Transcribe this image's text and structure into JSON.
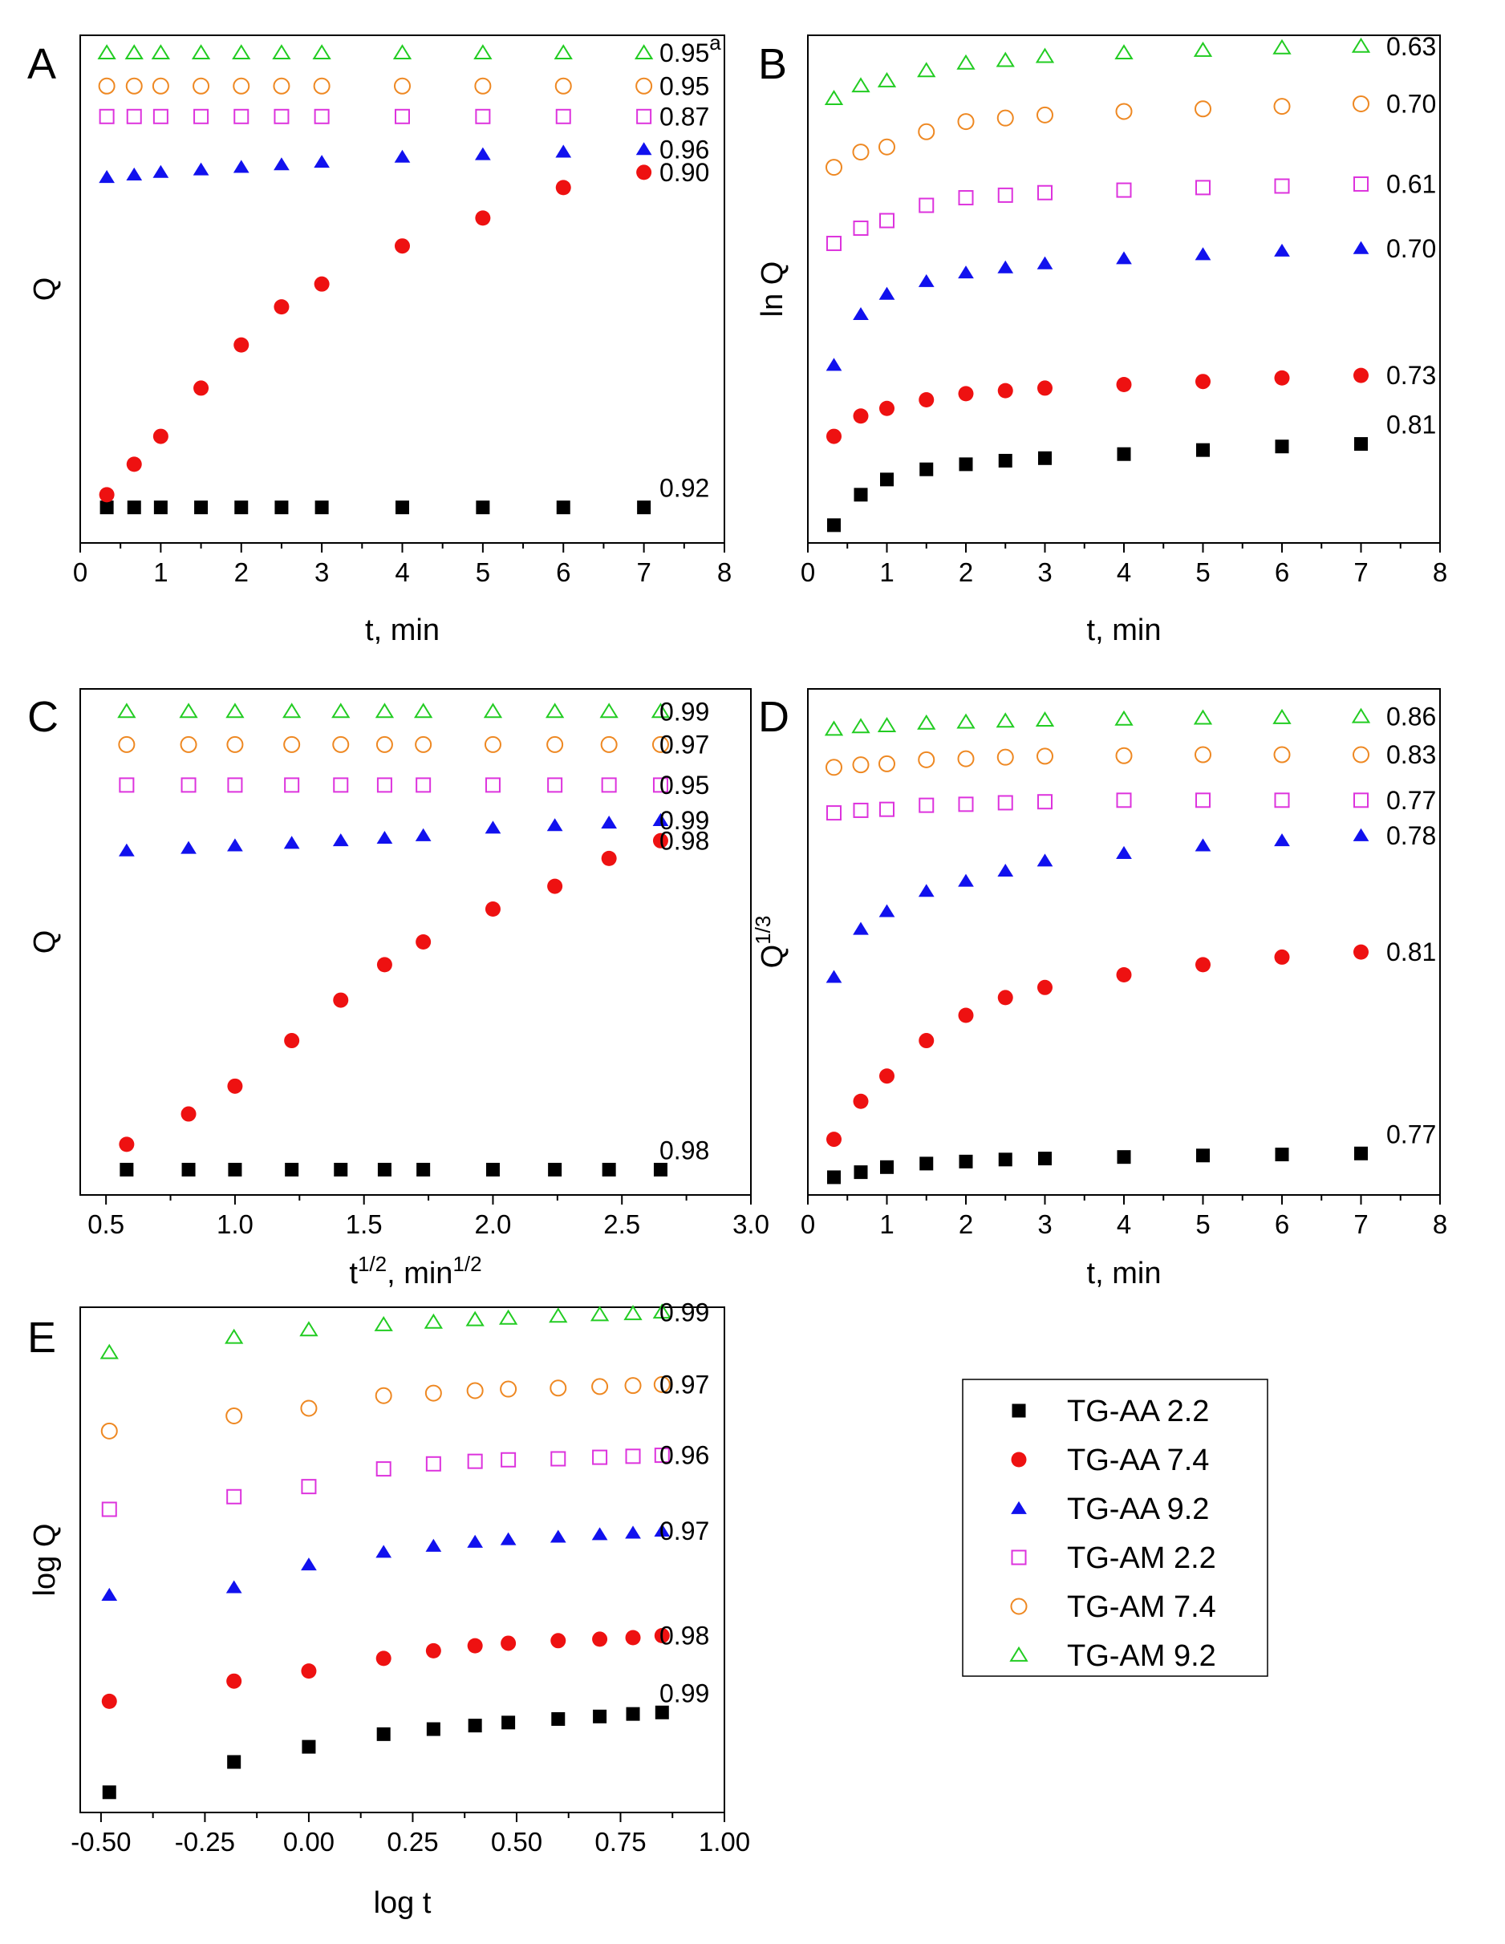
{
  "legend": {
    "entries": [
      {
        "name": "TG-AA 2.2",
        "marker": "square",
        "color": "#000000",
        "filled": true
      },
      {
        "name": "TG-AA 7.4",
        "marker": "circle",
        "color": "#ee1111",
        "filled": true
      },
      {
        "name": "TG-AA 9.2",
        "marker": "triangle",
        "color": "#1111ee",
        "filled": true
      },
      {
        "name": "TG-AM 2.2",
        "marker": "square",
        "color": "#dd33dd",
        "filled": false
      },
      {
        "name": "TG-AM 7.4",
        "marker": "circle",
        "color": "#ee8822",
        "filled": false
      },
      {
        "name": "TG-AM 9.2",
        "marker": "triangle",
        "color": "#22cc22",
        "filled": false
      }
    ]
  },
  "chart_data": [
    {
      "panel": "A",
      "type": "scatter",
      "xlabel": "t, min",
      "ylabel": "Q",
      "xlim": [
        0,
        8
      ],
      "xticks": [
        "0",
        "1",
        "2",
        "3",
        "4",
        "5",
        "6",
        "7",
        "8"
      ],
      "ylim": [
        0,
        1
      ],
      "y_tick_labels_shown": false,
      "x": [
        0.33,
        0.67,
        1,
        1.5,
        2,
        2.5,
        3,
        4,
        5,
        6,
        7
      ],
      "series": [
        {
          "name": "TG-AA 2.2",
          "values": [
            0.07,
            0.07,
            0.07,
            0.07,
            0.07,
            0.07,
            0.07,
            0.07,
            0.07,
            0.07,
            0.07
          ],
          "r2": "0.92"
        },
        {
          "name": "TG-AA 7.4",
          "values": [
            0.095,
            0.155,
            0.21,
            0.305,
            0.39,
            0.465,
            0.51,
            0.585,
            0.64,
            0.7,
            0.73
          ],
          "r2": "0.90"
        },
        {
          "name": "TG-AA 9.2",
          "values": [
            0.72,
            0.725,
            0.73,
            0.735,
            0.74,
            0.745,
            0.75,
            0.76,
            0.765,
            0.77,
            0.775
          ],
          "r2": "0.96"
        },
        {
          "name": "TG-AM 2.2",
          "values": [
            0.84,
            0.84,
            0.84,
            0.84,
            0.84,
            0.84,
            0.84,
            0.84,
            0.84,
            0.84,
            0.84
          ],
          "r2": "0.87"
        },
        {
          "name": "TG-AM 7.4",
          "values": [
            0.9,
            0.9,
            0.9,
            0.9,
            0.9,
            0.9,
            0.9,
            0.9,
            0.9,
            0.9,
            0.9
          ],
          "r2": "0.95"
        },
        {
          "name": "TG-AM 9.2",
          "values": [
            0.965,
            0.965,
            0.965,
            0.965,
            0.965,
            0.965,
            0.965,
            0.965,
            0.965,
            0.965,
            0.965
          ],
          "r2": "0.95",
          "note": "a"
        }
      ]
    },
    {
      "panel": "B",
      "type": "scatter",
      "xlabel": "t, min",
      "ylabel": "ln Q",
      "xlim": [
        0,
        8
      ],
      "xticks": [
        "0",
        "1",
        "2",
        "3",
        "4",
        "5",
        "6",
        "7",
        "8"
      ],
      "ylim": [
        0,
        1
      ],
      "y_tick_labels_shown": false,
      "x": [
        0.33,
        0.67,
        1,
        1.5,
        2,
        2.5,
        3,
        4,
        5,
        6,
        7
      ],
      "series": [
        {
          "name": "TG-AA 2.2",
          "values": [
            0.035,
            0.095,
            0.125,
            0.145,
            0.155,
            0.162,
            0.167,
            0.175,
            0.183,
            0.19,
            0.195
          ],
          "r2": "0.81"
        },
        {
          "name": "TG-AA 7.4",
          "values": [
            0.21,
            0.25,
            0.265,
            0.282,
            0.294,
            0.3,
            0.305,
            0.312,
            0.318,
            0.325,
            0.33
          ],
          "r2": "0.73"
        },
        {
          "name": "TG-AA 9.2",
          "values": [
            0.35,
            0.45,
            0.49,
            0.515,
            0.532,
            0.542,
            0.55,
            0.56,
            0.568,
            0.575,
            0.58
          ],
          "r2": "0.70"
        },
        {
          "name": "TG-AM 2.2",
          "values": [
            0.59,
            0.62,
            0.635,
            0.665,
            0.68,
            0.685,
            0.69,
            0.695,
            0.7,
            0.703,
            0.707
          ],
          "r2": "0.61"
        },
        {
          "name": "TG-AM 7.4",
          "values": [
            0.74,
            0.77,
            0.78,
            0.81,
            0.83,
            0.837,
            0.843,
            0.85,
            0.855,
            0.86,
            0.865
          ],
          "r2": "0.70"
        },
        {
          "name": "TG-AM 9.2",
          "values": [
            0.875,
            0.9,
            0.91,
            0.93,
            0.945,
            0.95,
            0.958,
            0.965,
            0.97,
            0.975,
            0.978
          ],
          "r2": "0.63"
        }
      ]
    },
    {
      "panel": "C",
      "type": "scatter",
      "xlabel": "t^1/2, min^1/2",
      "ylabel": "Q",
      "xlim": [
        0.4,
        3.0
      ],
      "xticks": [
        "0.5",
        "1.0",
        "1.5",
        "2.0",
        "2.5",
        "3.0"
      ],
      "ylim": [
        0,
        1
      ],
      "y_tick_labels_shown": false,
      "x": [
        0.58,
        0.82,
        1.0,
        1.22,
        1.41,
        1.58,
        1.73,
        2.0,
        2.24,
        2.45,
        2.65
      ],
      "series": [
        {
          "name": "TG-AA 2.2",
          "values": [
            0.05,
            0.05,
            0.05,
            0.05,
            0.05,
            0.05,
            0.05,
            0.05,
            0.05,
            0.05,
            0.05
          ],
          "r2": "0.98"
        },
        {
          "name": "TG-AA 7.4",
          "values": [
            0.1,
            0.16,
            0.215,
            0.305,
            0.385,
            0.455,
            0.5,
            0.565,
            0.61,
            0.665,
            0.7
          ],
          "r2": "0.98"
        },
        {
          "name": "TG-AA 9.2",
          "values": [
            0.68,
            0.685,
            0.69,
            0.695,
            0.7,
            0.705,
            0.71,
            0.725,
            0.73,
            0.735,
            0.74
          ],
          "r2": "0.99"
        },
        {
          "name": "TG-AM 2.2",
          "values": [
            0.81,
            0.81,
            0.81,
            0.81,
            0.81,
            0.81,
            0.81,
            0.81,
            0.81,
            0.81,
            0.81
          ],
          "r2": "0.95"
        },
        {
          "name": "TG-AM 7.4",
          "values": [
            0.89,
            0.89,
            0.89,
            0.89,
            0.89,
            0.89,
            0.89,
            0.89,
            0.89,
            0.89,
            0.89
          ],
          "r2": "0.97"
        },
        {
          "name": "TG-AM 9.2",
          "values": [
            0.955,
            0.955,
            0.955,
            0.955,
            0.955,
            0.955,
            0.955,
            0.955,
            0.955,
            0.955,
            0.955
          ],
          "r2": "0.99"
        }
      ]
    },
    {
      "panel": "D",
      "type": "scatter",
      "xlabel": "t, min",
      "ylabel": "Q^1/3",
      "xlim": [
        0,
        8
      ],
      "xticks": [
        "0",
        "1",
        "2",
        "3",
        "4",
        "5",
        "6",
        "7",
        "8"
      ],
      "ylim": [
        0,
        1
      ],
      "y_tick_labels_shown": false,
      "x": [
        0.33,
        0.67,
        1,
        1.5,
        2,
        2.5,
        3,
        4,
        5,
        6,
        7
      ],
      "series": [
        {
          "name": "TG-AA 2.2",
          "values": [
            0.035,
            0.045,
            0.055,
            0.062,
            0.066,
            0.07,
            0.072,
            0.075,
            0.078,
            0.08,
            0.082
          ],
          "r2": "0.77"
        },
        {
          "name": "TG-AA 7.4",
          "values": [
            0.11,
            0.185,
            0.235,
            0.305,
            0.355,
            0.39,
            0.41,
            0.435,
            0.455,
            0.47,
            0.48
          ],
          "r2": "0.81"
        },
        {
          "name": "TG-AA 9.2",
          "values": [
            0.43,
            0.525,
            0.56,
            0.6,
            0.62,
            0.64,
            0.66,
            0.675,
            0.69,
            0.7,
            0.71
          ],
          "r2": "0.78"
        },
        {
          "name": "TG-AM 2.2",
          "values": [
            0.755,
            0.76,
            0.762,
            0.77,
            0.772,
            0.775,
            0.777,
            0.78,
            0.78,
            0.78,
            0.78
          ],
          "r2": "0.77"
        },
        {
          "name": "TG-AM 7.4",
          "values": [
            0.845,
            0.85,
            0.852,
            0.86,
            0.862,
            0.865,
            0.867,
            0.868,
            0.87,
            0.87,
            0.87
          ],
          "r2": "0.83"
        },
        {
          "name": "TG-AM 9.2",
          "values": [
            0.92,
            0.925,
            0.927,
            0.932,
            0.934,
            0.936,
            0.938,
            0.94,
            0.942,
            0.943,
            0.945
          ],
          "r2": "0.86"
        }
      ]
    },
    {
      "panel": "E",
      "type": "scatter",
      "xlabel": "log t",
      "ylabel": "log Q",
      "xlim": [
        -0.55,
        1.0
      ],
      "xticks": [
        "-0.50",
        "-0.25",
        "0.00",
        "0.25",
        "0.50",
        "0.75",
        "1.00"
      ],
      "ylim": [
        0,
        1
      ],
      "y_tick_labels_shown": false,
      "x": [
        -0.48,
        -0.18,
        0.0,
        0.18,
        0.3,
        0.4,
        0.48,
        0.6,
        0.7,
        0.78,
        0.85
      ],
      "series": [
        {
          "name": "TG-AA 2.2",
          "values": [
            0.04,
            0.1,
            0.13,
            0.155,
            0.165,
            0.172,
            0.178,
            0.185,
            0.19,
            0.195,
            0.198
          ],
          "r2": "0.99"
        },
        {
          "name": "TG-AA 7.4",
          "values": [
            0.22,
            0.26,
            0.28,
            0.305,
            0.32,
            0.33,
            0.335,
            0.34,
            0.343,
            0.346,
            0.35
          ],
          "r2": "0.98"
        },
        {
          "name": "TG-AA 9.2",
          "values": [
            0.43,
            0.445,
            0.49,
            0.515,
            0.527,
            0.535,
            0.54,
            0.545,
            0.55,
            0.553,
            0.557
          ],
          "r2": "0.97"
        },
        {
          "name": "TG-AM 2.2",
          "values": [
            0.6,
            0.625,
            0.645,
            0.68,
            0.69,
            0.695,
            0.698,
            0.7,
            0.703,
            0.705,
            0.707
          ],
          "r2": "0.96"
        },
        {
          "name": "TG-AM 7.4",
          "values": [
            0.755,
            0.785,
            0.8,
            0.825,
            0.83,
            0.835,
            0.838,
            0.84,
            0.843,
            0.845,
            0.847
          ],
          "r2": "0.97"
        },
        {
          "name": "TG-AM 9.2",
          "values": [
            0.91,
            0.94,
            0.955,
            0.965,
            0.97,
            0.975,
            0.978,
            0.982,
            0.985,
            0.987,
            0.99
          ],
          "r2": "0.99"
        }
      ]
    }
  ]
}
